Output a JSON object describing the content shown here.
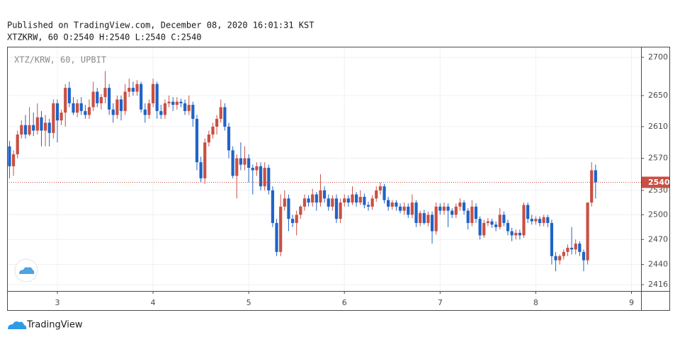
{
  "header": {
    "published": "Published on TradingView.com, December 08, 2020 16:01:31 KST",
    "symbol_line": "XTZKRW, 60 O:2540 H:2540 L:2540 C:2540"
  },
  "chart_data": {
    "type": "candlestick",
    "watermark": "XTZ/KRW, 60, UPBIT",
    "x": [
      12,
      13,
      14,
      15,
      16,
      17,
      18,
      19,
      20,
      21,
      22,
      23,
      24,
      25,
      26,
      27,
      28,
      29,
      30,
      31,
      32,
      33,
      34,
      35,
      36,
      37,
      38,
      39,
      40,
      41,
      42,
      43,
      44,
      45,
      46,
      47,
      48,
      49,
      50,
      51,
      52,
      53,
      54,
      55,
      56,
      57,
      58,
      59,
      60,
      61,
      62,
      63,
      64,
      65,
      66,
      67,
      68,
      69,
      70,
      71,
      72,
      73,
      74,
      75,
      76,
      77,
      78,
      79,
      80,
      81,
      82,
      83,
      84,
      85,
      86,
      87,
      88,
      89,
      90,
      91,
      92,
      93,
      94,
      95,
      96,
      97,
      98,
      99,
      100,
      101,
      102,
      103,
      104,
      105,
      106,
      107,
      108,
      109,
      110,
      111,
      112,
      113,
      114,
      115,
      116,
      117,
      118,
      119,
      120,
      121,
      122,
      123,
      124,
      125,
      126,
      127,
      128,
      129,
      130,
      131,
      132,
      133,
      134,
      135,
      136,
      137,
      138,
      139,
      140,
      141,
      142,
      143,
      144,
      145,
      146,
      147,
      148,
      149,
      150,
      151,
      152,
      153,
      154,
      155,
      156,
      157,
      158,
      159
    ],
    "open": [
      2585,
      2560,
      2575,
      2600,
      2612,
      2600,
      2612,
      2605,
      2622,
      2605,
      2615,
      2602,
      2640,
      2618,
      2628,
      2660,
      2640,
      2628,
      2640,
      2630,
      2625,
      2635,
      2655,
      2640,
      2648,
      2660,
      2632,
      2625,
      2645,
      2630,
      2655,
      2660,
      2655,
      2665,
      2632,
      2625,
      2640,
      2665,
      2630,
      2625,
      2640,
      2642,
      2638,
      2642,
      2640,
      2630,
      2638,
      2620,
      2565,
      2545,
      2590,
      2600,
      2610,
      2620,
      2635,
      2610,
      2580,
      2548,
      2570,
      2562,
      2570,
      2558,
      2555,
      2560,
      2535,
      2558,
      2530,
      2490,
      2455,
      2510,
      2520,
      2495,
      2490,
      2500,
      2510,
      2520,
      2515,
      2525,
      2515,
      2530,
      2520,
      2510,
      2520,
      2495,
      2515,
      2520,
      2515,
      2525,
      2515,
      2522,
      2512,
      2510,
      2520,
      2530,
      2535,
      2518,
      2510,
      2515,
      2510,
      2505,
      2510,
      2500,
      2515,
      2490,
      2502,
      2490,
      2500,
      2480,
      2510,
      2505,
      2510,
      2505,
      2500,
      2510,
      2515,
      2505,
      2490,
      2510,
      2495,
      2475,
      2490,
      2492,
      2488,
      2485,
      2500,
      2490,
      2480,
      2475,
      2478,
      2475,
      2512,
      2495,
      2492,
      2495,
      2490,
      2497,
      2490,
      2450,
      2445,
      2450,
      2455,
      2460,
      2458,
      2465,
      2455,
      2445,
      2515,
      2555
    ],
    "high": [
      2592,
      2580,
      2605,
      2618,
      2625,
      2635,
      2628,
      2640,
      2630,
      2625,
      2620,
      2645,
      2645,
      2632,
      2665,
      2668,
      2648,
      2645,
      2648,
      2638,
      2645,
      2668,
      2660,
      2652,
      2682,
      2665,
      2640,
      2650,
      2650,
      2665,
      2672,
      2668,
      2670,
      2668,
      2640,
      2645,
      2672,
      2668,
      2638,
      2645,
      2650,
      2648,
      2648,
      2646,
      2645,
      2650,
      2642,
      2625,
      2572,
      2595,
      2605,
      2615,
      2625,
      2645,
      2640,
      2615,
      2585,
      2575,
      2590,
      2585,
      2575,
      2562,
      2565,
      2565,
      2565,
      2562,
      2535,
      2495,
      2525,
      2530,
      2525,
      2500,
      2505,
      2512,
      2525,
      2524,
      2532,
      2528,
      2550,
      2535,
      2525,
      2524,
      2525,
      2520,
      2525,
      2524,
      2535,
      2528,
      2530,
      2526,
      2516,
      2524,
      2535,
      2540,
      2538,
      2522,
      2518,
      2518,
      2514,
      2515,
      2514,
      2525,
      2518,
      2505,
      2506,
      2504,
      2504,
      2515,
      2514,
      2515,
      2514,
      2508,
      2514,
      2520,
      2518,
      2508,
      2518,
      2514,
      2498,
      2494,
      2496,
      2495,
      2492,
      2508,
      2504,
      2494,
      2484,
      2482,
      2482,
      2515,
      2515,
      2500,
      2498,
      2498,
      2500,
      2500,
      2494,
      2455,
      2452,
      2458,
      2464,
      2485,
      2470,
      2468,
      2458,
      2515,
      2565,
      2562
    ],
    "low": [
      2545,
      2548,
      2570,
      2595,
      2595,
      2598,
      2598,
      2600,
      2585,
      2585,
      2585,
      2595,
      2590,
      2612,
      2610,
      2635,
      2625,
      2622,
      2625,
      2620,
      2620,
      2630,
      2635,
      2632,
      2640,
      2625,
      2615,
      2620,
      2618,
      2625,
      2648,
      2650,
      2650,
      2628,
      2615,
      2620,
      2635,
      2620,
      2620,
      2620,
      2635,
      2630,
      2632,
      2635,
      2625,
      2625,
      2610,
      2555,
      2540,
      2538,
      2585,
      2595,
      2600,
      2615,
      2605,
      2570,
      2545,
      2520,
      2555,
      2555,
      2540,
      2525,
      2548,
      2530,
      2530,
      2525,
      2485,
      2450,
      2450,
      2505,
      2480,
      2485,
      2475,
      2495,
      2505,
      2510,
      2510,
      2505,
      2510,
      2515,
      2505,
      2505,
      2490,
      2490,
      2510,
      2510,
      2512,
      2510,
      2512,
      2508,
      2505,
      2506,
      2516,
      2525,
      2514,
      2505,
      2506,
      2505,
      2502,
      2500,
      2496,
      2496,
      2485,
      2486,
      2488,
      2486,
      2465,
      2476,
      2500,
      2500,
      2485,
      2496,
      2496,
      2505,
      2500,
      2482,
      2486,
      2490,
      2470,
      2472,
      2486,
      2484,
      2480,
      2482,
      2486,
      2475,
      2468,
      2470,
      2470,
      2472,
      2490,
      2488,
      2488,
      2486,
      2486,
      2485,
      2440,
      2432,
      2440,
      2446,
      2450,
      2452,
      2452,
      2450,
      2432,
      2440,
      2510,
      2520
    ],
    "close": [
      2560,
      2575,
      2600,
      2612,
      2600,
      2612,
      2605,
      2622,
      2605,
      2615,
      2602,
      2640,
      2618,
      2628,
      2660,
      2640,
      2628,
      2640,
      2630,
      2625,
      2635,
      2655,
      2640,
      2648,
      2660,
      2632,
      2625,
      2645,
      2630,
      2655,
      2660,
      2655,
      2665,
      2632,
      2625,
      2640,
      2665,
      2630,
      2625,
      2640,
      2642,
      2638,
      2642,
      2640,
      2630,
      2638,
      2620,
      2565,
      2545,
      2590,
      2600,
      2610,
      2620,
      2635,
      2610,
      2580,
      2548,
      2570,
      2562,
      2570,
      2558,
      2555,
      2560,
      2535,
      2558,
      2530,
      2490,
      2455,
      2510,
      2520,
      2495,
      2490,
      2500,
      2510,
      2520,
      2515,
      2525,
      2515,
      2530,
      2520,
      2510,
      2520,
      2495,
      2515,
      2520,
      2515,
      2525,
      2515,
      2522,
      2512,
      2510,
      2520,
      2530,
      2535,
      2518,
      2510,
      2515,
      2510,
      2505,
      2510,
      2500,
      2515,
      2490,
      2502,
      2490,
      2500,
      2480,
      2510,
      2505,
      2510,
      2505,
      2500,
      2510,
      2515,
      2505,
      2490,
      2510,
      2495,
      2475,
      2490,
      2492,
      2488,
      2485,
      2500,
      2490,
      2480,
      2475,
      2478,
      2475,
      2512,
      2495,
      2492,
      2495,
      2490,
      2497,
      2490,
      2450,
      2445,
      2450,
      2455,
      2460,
      2458,
      2465,
      2455,
      2445,
      2515,
      2555,
      2540
    ],
    "up_color": "#c94f43",
    "down_color": "#1f63c7",
    "xlim": [
      11.39,
      170.4
    ],
    "xticks": [
      {
        "value": 24,
        "label": "3"
      },
      {
        "value": 48,
        "label": "4"
      },
      {
        "value": 72,
        "label": "5"
      },
      {
        "value": 96,
        "label": "6"
      },
      {
        "value": 120,
        "label": "7"
      },
      {
        "value": 144,
        "label": "8"
      },
      {
        "value": 168,
        "label": "9"
      }
    ],
    "ylim": [
      2408.6,
      2714
    ],
    "yticks": [
      2416,
      2440,
      2470,
      2500,
      2530,
      2570,
      2610,
      2650,
      2700
    ],
    "log_scale": true,
    "grid": true,
    "last_price": 2540,
    "price_line_color": "#c94f43"
  },
  "footer": {
    "brand": "TradingView"
  }
}
